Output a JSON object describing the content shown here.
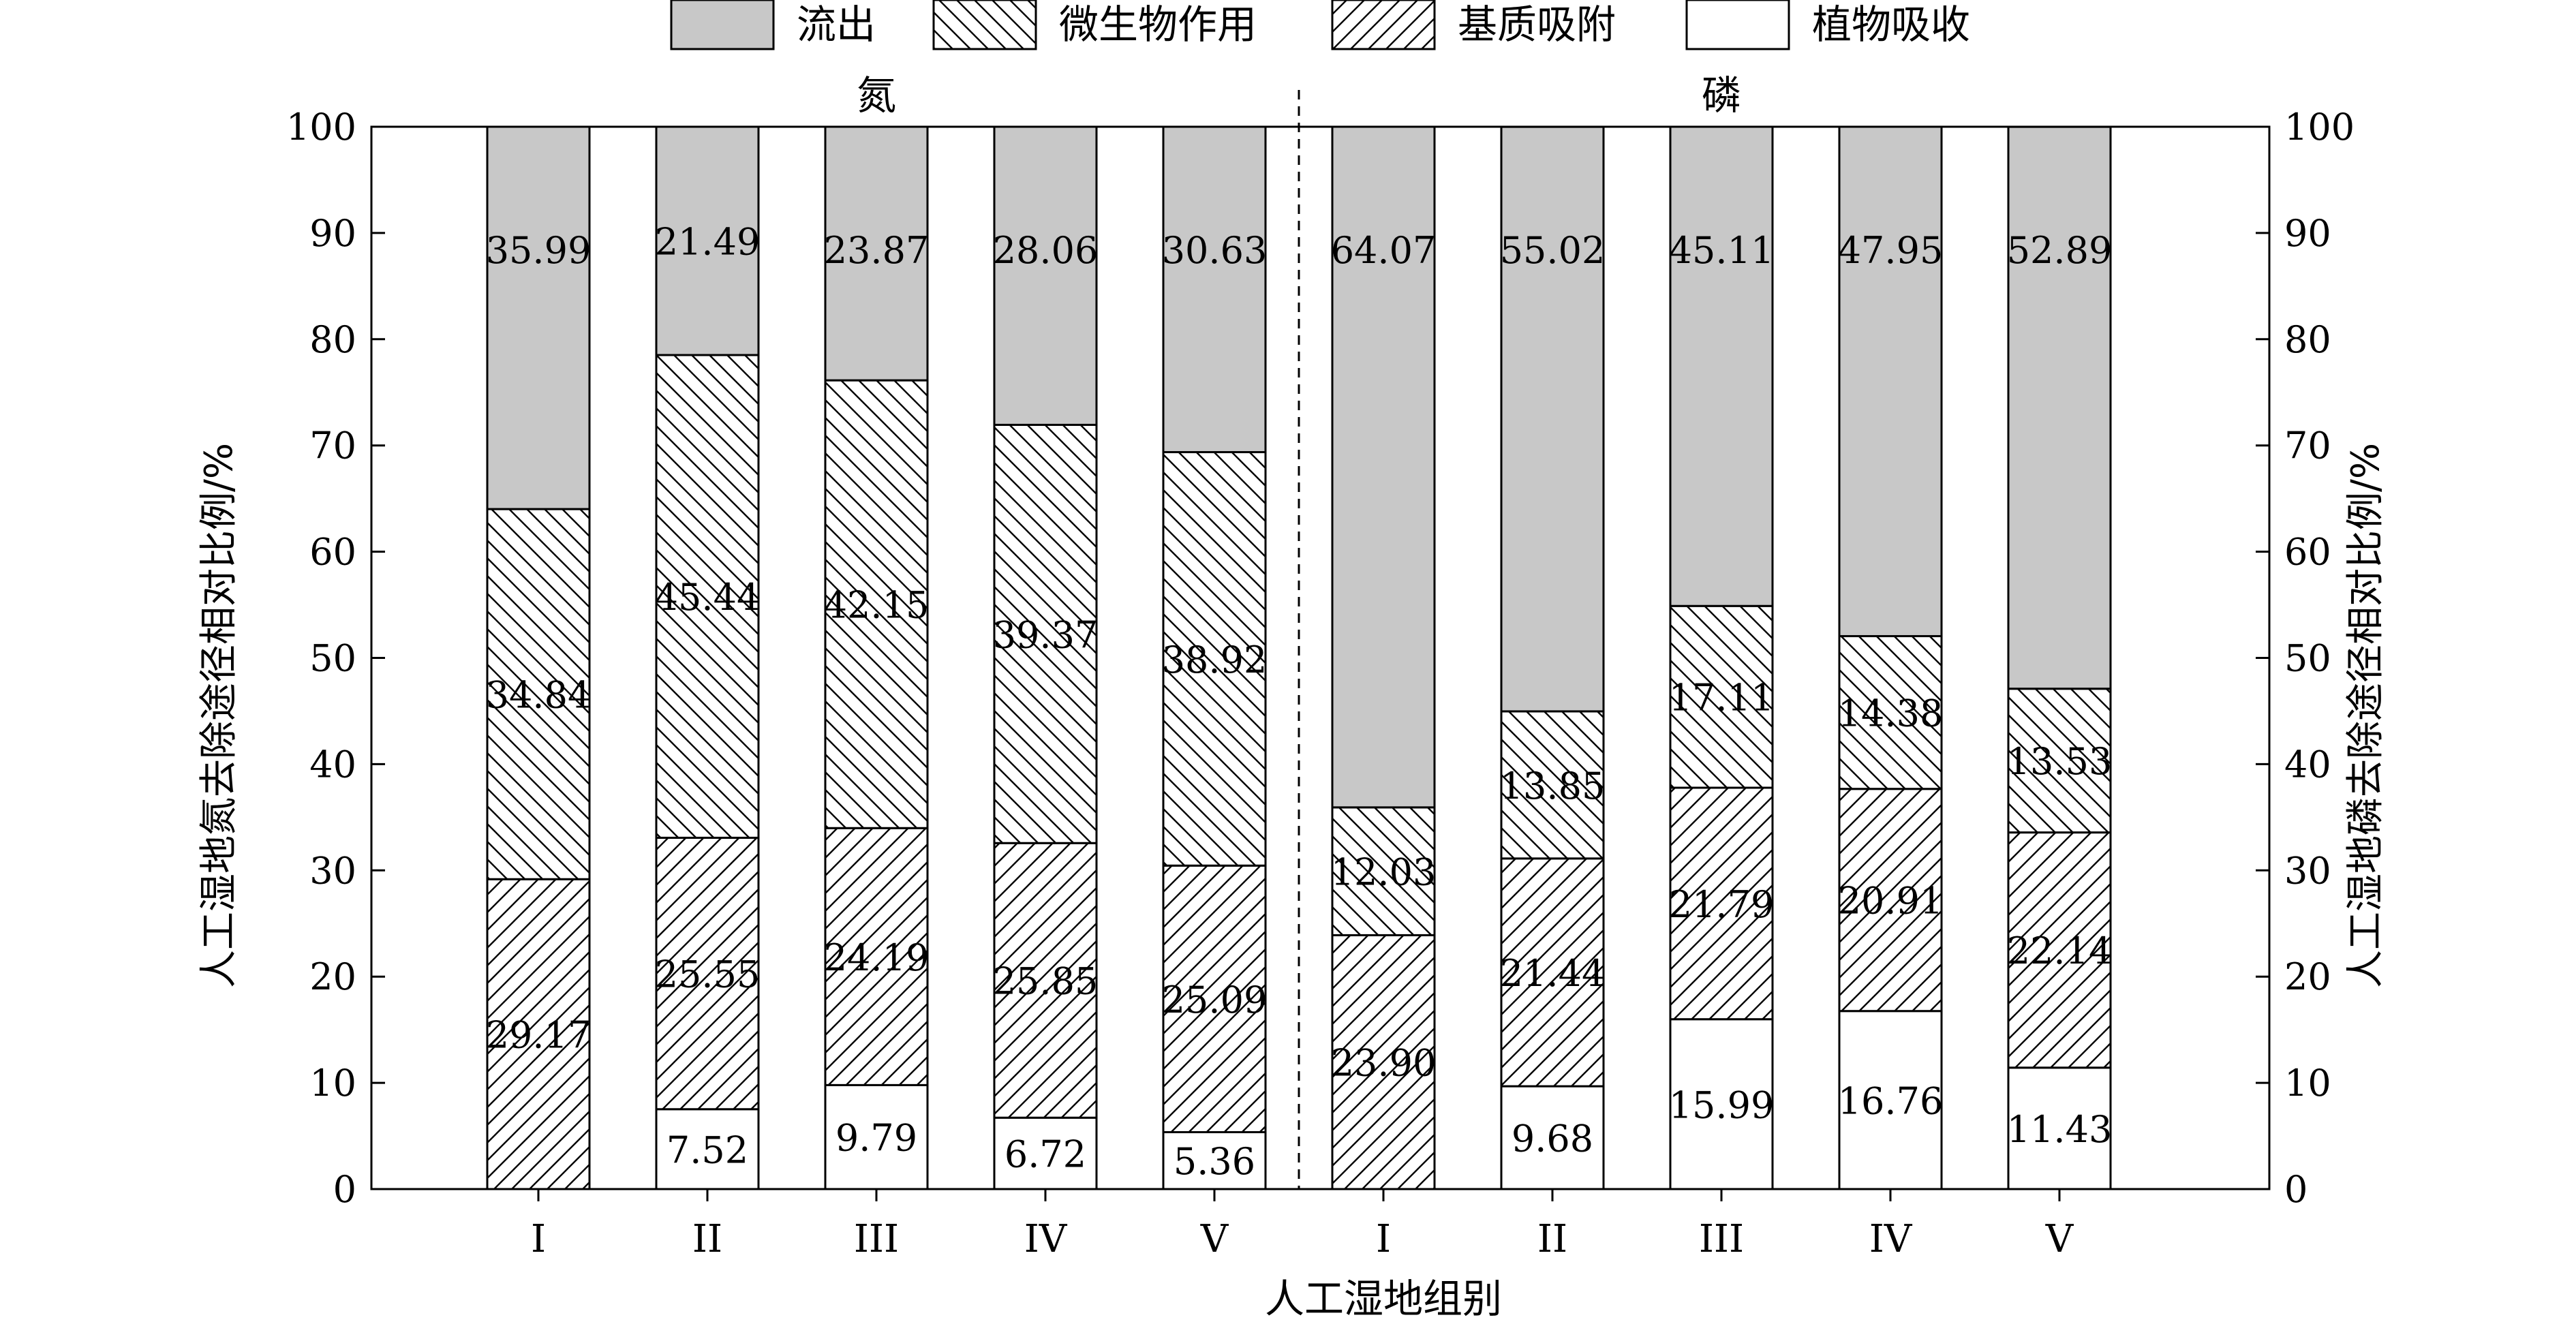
{
  "chart_data": {
    "type": "bar",
    "stacked": true,
    "categories": [
      "I",
      "II",
      "III",
      "IV",
      "V",
      "I",
      "II",
      "III",
      "IV",
      "V"
    ],
    "groups": [
      {
        "label": "氮",
        "categories": [
          "I",
          "II",
          "III",
          "IV",
          "V"
        ]
      },
      {
        "label": "磷",
        "categories": [
          "I",
          "II",
          "III",
          "IV",
          "V"
        ]
      }
    ],
    "series": [
      {
        "name": "植物吸收",
        "fill": "white",
        "values": [
          0,
          7.52,
          9.79,
          6.72,
          5.36,
          0,
          9.68,
          15.99,
          16.76,
          11.43
        ],
        "labels": [
          "",
          "7.52",
          "9.79",
          "6.72",
          "5.36",
          "",
          "9.68",
          "15.99",
          "16.76",
          "11.43"
        ]
      },
      {
        "name": "基质吸附",
        "fill": "hatch-forward",
        "values": [
          29.17,
          25.55,
          24.19,
          25.85,
          25.09,
          23.9,
          21.44,
          21.79,
          20.91,
          22.14
        ],
        "labels": [
          "29.17",
          "25.55",
          "24.19",
          "25.85",
          "25.09",
          "23.90",
          "21.44",
          "21.79",
          "20.91",
          "22.14"
        ]
      },
      {
        "name": "微生物作用",
        "fill": "hatch-back",
        "values": [
          34.84,
          45.44,
          42.15,
          39.37,
          38.92,
          12.03,
          13.85,
          17.11,
          14.38,
          13.53
        ],
        "labels": [
          "34.84",
          "45.44",
          "42.15",
          "39.37",
          "38.92",
          "12.03",
          "13.85",
          "17.11",
          "14.38",
          "13.53"
        ]
      },
      {
        "name": "流出",
        "fill": "gray",
        "values": [
          35.99,
          21.49,
          23.87,
          28.06,
          30.63,
          64.07,
          55.02,
          45.11,
          47.95,
          52.89
        ],
        "labels": [
          "35.99",
          "21.49",
          "23.87",
          "28.06",
          "30.63",
          "64.07",
          "55.02",
          "45.11",
          "47.95",
          "52.89"
        ]
      }
    ],
    "legend_order": [
      "流出",
      "微生物作用",
      "基质吸附",
      "植物吸收"
    ],
    "legend_position": "top",
    "xlabel": "人工湿地组别",
    "ylabel_left": "人工湿地氮去除途径相对比例/%",
    "ylabel_right": "人工湿地磷去除途径相对比例/%",
    "ylim": [
      0,
      100
    ],
    "yticks": [
      0,
      10,
      20,
      30,
      40,
      50,
      60,
      70,
      80,
      90,
      100
    ],
    "grid": false,
    "divider": "dashed",
    "colors": {
      "gray": "#c8c8c8",
      "edge": "#000000",
      "white": "#ffffff"
    }
  }
}
